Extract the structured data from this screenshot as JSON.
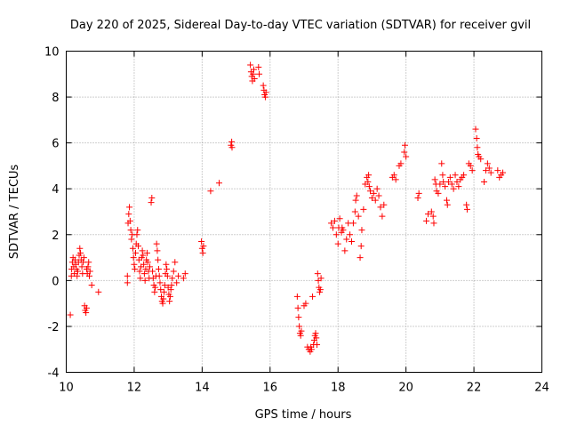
{
  "chart_data": {
    "type": "scatter",
    "title": "Day 220 of 2025, Sidereal Day-to-day VTEC variation (SDTVAR) for receiver gvil",
    "xlabel": "GPS time / hours",
    "ylabel": "SDTVAR / TECUs",
    "xlim": [
      10,
      24
    ],
    "ylim": [
      -4,
      10
    ],
    "xticks": [
      10,
      12,
      14,
      16,
      18,
      20,
      22,
      24
    ],
    "yticks": [
      -4,
      -2,
      0,
      2,
      4,
      6,
      8,
      10
    ],
    "xtick_labels": [
      "10",
      "12",
      "14",
      "16",
      "18",
      "20",
      "22",
      "24"
    ],
    "ytick_labels": [
      "-4",
      "-2",
      "0",
      "2",
      "4",
      "6",
      "8",
      "10"
    ],
    "grid": true,
    "marker": "+",
    "color": "#ff0000",
    "series": [
      {
        "name": "SDTVAR",
        "points": [
          [
            10.12,
            -1.5
          ],
          [
            10.15,
            0.2
          ],
          [
            10.16,
            0.5
          ],
          [
            10.18,
            0.8
          ],
          [
            10.2,
            1.0
          ],
          [
            10.22,
            0.6
          ],
          [
            10.24,
            0.3
          ],
          [
            10.26,
            0.9
          ],
          [
            10.28,
            0.7
          ],
          [
            10.3,
            0.5
          ],
          [
            10.32,
            0.2
          ],
          [
            10.34,
            0.4
          ],
          [
            10.36,
            0.8
          ],
          [
            10.38,
            1.1
          ],
          [
            10.4,
            1.4
          ],
          [
            10.42,
            1.2
          ],
          [
            10.44,
            0.9
          ],
          [
            10.46,
            0.6
          ],
          [
            10.48,
            0.3
          ],
          [
            10.5,
            0.8
          ],
          [
            10.52,
            1.0
          ],
          [
            10.54,
            -1.1
          ],
          [
            10.56,
            -1.3
          ],
          [
            10.58,
            -1.4
          ],
          [
            10.6,
            -1.2
          ],
          [
            10.6,
            0.5
          ],
          [
            10.62,
            0.3
          ],
          [
            10.64,
            0.6
          ],
          [
            10.66,
            0.8
          ],
          [
            10.68,
            0.2
          ],
          [
            10.7,
            0.4
          ],
          [
            10.75,
            -0.2
          ],
          [
            10.95,
            -0.5
          ],
          [
            11.8,
            -0.1
          ],
          [
            11.8,
            0.2
          ],
          [
            11.82,
            2.5
          ],
          [
            11.84,
            2.9
          ],
          [
            11.86,
            3.2
          ],
          [
            11.88,
            2.6
          ],
          [
            11.9,
            2.2
          ],
          [
            11.92,
            1.8
          ],
          [
            11.94,
            2.0
          ],
          [
            11.96,
            1.4
          ],
          [
            11.98,
            1.0
          ],
          [
            12.0,
            0.7
          ],
          [
            12.02,
            0.5
          ],
          [
            12.04,
            1.2
          ],
          [
            12.06,
            1.6
          ],
          [
            12.08,
            2.0
          ],
          [
            12.1,
            2.2
          ],
          [
            12.12,
            1.5
          ],
          [
            12.14,
            0.9
          ],
          [
            12.16,
            0.4
          ],
          [
            12.18,
            0.1
          ],
          [
            12.2,
            0.6
          ],
          [
            12.22,
            1.0
          ],
          [
            12.24,
            1.3
          ],
          [
            12.26,
            1.1
          ],
          [
            12.28,
            0.7
          ],
          [
            12.3,
            0.3
          ],
          [
            12.32,
            0.0
          ],
          [
            12.34,
            0.5
          ],
          [
            12.36,
            0.9
          ],
          [
            12.38,
            1.2
          ],
          [
            12.4,
            0.8
          ],
          [
            12.42,
            0.4
          ],
          [
            12.44,
            0.1
          ],
          [
            12.46,
            0.6
          ],
          [
            12.5,
            3.4
          ],
          [
            12.52,
            3.6
          ],
          [
            12.54,
            0.4
          ],
          [
            12.56,
            0.1
          ],
          [
            12.58,
            -0.2
          ],
          [
            12.6,
            -0.5
          ],
          [
            12.62,
            -0.3
          ],
          [
            12.64,
            0.2
          ],
          [
            12.66,
            1.6
          ],
          [
            12.68,
            1.3
          ],
          [
            12.7,
            0.9
          ],
          [
            12.72,
            0.5
          ],
          [
            12.74,
            0.2
          ],
          [
            12.76,
            -0.1
          ],
          [
            12.78,
            -0.4
          ],
          [
            12.8,
            -0.7
          ],
          [
            12.82,
            -0.9
          ],
          [
            12.84,
            -1.0
          ],
          [
            12.86,
            -0.8
          ],
          [
            12.88,
            -0.5
          ],
          [
            12.9,
            -0.2
          ],
          [
            12.92,
            0.3
          ],
          [
            12.94,
            0.7
          ],
          [
            12.96,
            0.5
          ],
          [
            12.98,
            0.2
          ],
          [
            13.0,
            -0.3
          ],
          [
            13.02,
            -0.6
          ],
          [
            13.04,
            -0.9
          ],
          [
            13.06,
            -0.7
          ],
          [
            13.08,
            -0.4
          ],
          [
            13.1,
            -0.2
          ],
          [
            13.12,
            0.1
          ],
          [
            13.16,
            0.4
          ],
          [
            13.2,
            0.8
          ],
          [
            13.25,
            -0.1
          ],
          [
            13.3,
            0.2
          ],
          [
            13.45,
            0.1
          ],
          [
            13.5,
            0.3
          ],
          [
            13.98,
            1.7
          ],
          [
            14.0,
            1.4
          ],
          [
            14.02,
            1.2
          ],
          [
            14.04,
            1.5
          ],
          [
            14.25,
            3.9
          ],
          [
            14.5,
            4.25
          ],
          [
            14.85,
            5.9
          ],
          [
            14.87,
            6.05
          ],
          [
            14.88,
            5.8
          ],
          [
            15.42,
            9.4
          ],
          [
            15.44,
            9.1
          ],
          [
            15.46,
            8.9
          ],
          [
            15.48,
            8.7
          ],
          [
            15.5,
            9.0
          ],
          [
            15.52,
            9.2
          ],
          [
            15.54,
            8.8
          ],
          [
            15.66,
            9.3
          ],
          [
            15.68,
            9.0
          ],
          [
            15.8,
            8.5
          ],
          [
            15.82,
            8.3
          ],
          [
            15.84,
            8.1
          ],
          [
            15.86,
            8.0
          ],
          [
            15.88,
            8.2
          ],
          [
            16.8,
            -0.7
          ],
          [
            16.82,
            -1.2
          ],
          [
            16.84,
            -1.6
          ],
          [
            16.86,
            -2.0
          ],
          [
            16.88,
            -2.3
          ],
          [
            16.9,
            -2.4
          ],
          [
            16.92,
            -2.2
          ],
          [
            17.0,
            -1.1
          ],
          [
            17.05,
            -1.0
          ],
          [
            17.1,
            -2.9
          ],
          [
            17.14,
            -3.0
          ],
          [
            17.18,
            -3.1
          ],
          [
            17.2,
            -2.9
          ],
          [
            17.22,
            -3.0
          ],
          [
            17.25,
            -0.7
          ],
          [
            17.28,
            -2.8
          ],
          [
            17.3,
            -2.6
          ],
          [
            17.32,
            -2.4
          ],
          [
            17.34,
            -2.3
          ],
          [
            17.36,
            -2.5
          ],
          [
            17.38,
            -2.8
          ],
          [
            17.4,
            0.3
          ],
          [
            17.42,
            0.0
          ],
          [
            17.44,
            -0.3
          ],
          [
            17.46,
            -0.5
          ],
          [
            17.48,
            -0.4
          ],
          [
            17.5,
            0.1
          ],
          [
            17.8,
            2.5
          ],
          [
            17.85,
            2.3
          ],
          [
            17.9,
            2.6
          ],
          [
            17.95,
            2.0
          ],
          [
            18.0,
            1.6
          ],
          [
            18.02,
            2.3
          ],
          [
            18.05,
            2.7
          ],
          [
            18.1,
            2.1
          ],
          [
            18.12,
            2.3
          ],
          [
            18.15,
            2.2
          ],
          [
            18.2,
            1.3
          ],
          [
            18.25,
            1.8
          ],
          [
            18.3,
            2.5
          ],
          [
            18.35,
            2.0
          ],
          [
            18.4,
            1.7
          ],
          [
            18.45,
            2.5
          ],
          [
            18.5,
            3.0
          ],
          [
            18.52,
            3.5
          ],
          [
            18.55,
            3.7
          ],
          [
            18.6,
            2.8
          ],
          [
            18.65,
            1.0
          ],
          [
            18.68,
            1.5
          ],
          [
            18.7,
            2.2
          ],
          [
            18.75,
            3.1
          ],
          [
            18.8,
            4.2
          ],
          [
            18.85,
            4.5
          ],
          [
            18.88,
            4.3
          ],
          [
            18.9,
            4.6
          ],
          [
            18.92,
            4.1
          ],
          [
            18.95,
            3.9
          ],
          [
            19.0,
            3.6
          ],
          [
            19.05,
            3.8
          ],
          [
            19.1,
            3.5
          ],
          [
            19.15,
            4.0
          ],
          [
            19.2,
            3.7
          ],
          [
            19.25,
            3.2
          ],
          [
            19.3,
            2.8
          ],
          [
            19.35,
            3.3
          ],
          [
            19.6,
            4.5
          ],
          [
            19.65,
            4.6
          ],
          [
            19.7,
            4.4
          ],
          [
            19.8,
            5.0
          ],
          [
            19.85,
            5.1
          ],
          [
            19.95,
            5.6
          ],
          [
            19.97,
            5.9
          ],
          [
            20.0,
            5.4
          ],
          [
            20.35,
            3.6
          ],
          [
            20.38,
            3.8
          ],
          [
            20.6,
            2.6
          ],
          [
            20.65,
            2.9
          ],
          [
            20.75,
            3.0
          ],
          [
            20.8,
            2.8
          ],
          [
            20.82,
            2.5
          ],
          [
            20.85,
            4.4
          ],
          [
            20.88,
            4.2
          ],
          [
            20.9,
            3.9
          ],
          [
            20.95,
            3.8
          ],
          [
            21.0,
            4.2
          ],
          [
            21.05,
            5.1
          ],
          [
            21.08,
            4.6
          ],
          [
            21.1,
            4.3
          ],
          [
            21.15,
            4.1
          ],
          [
            21.2,
            3.5
          ],
          [
            21.22,
            3.3
          ],
          [
            21.25,
            4.3
          ],
          [
            21.3,
            4.5
          ],
          [
            21.35,
            4.2
          ],
          [
            21.4,
            4.0
          ],
          [
            21.45,
            4.6
          ],
          [
            21.5,
            4.3
          ],
          [
            21.55,
            4.1
          ],
          [
            21.6,
            4.4
          ],
          [
            21.65,
            4.5
          ],
          [
            21.7,
            4.6
          ],
          [
            21.78,
            3.3
          ],
          [
            21.8,
            3.1
          ],
          [
            21.85,
            5.1
          ],
          [
            21.9,
            5.0
          ],
          [
            21.95,
            4.8
          ],
          [
            22.05,
            6.6
          ],
          [
            22.08,
            6.2
          ],
          [
            22.1,
            5.8
          ],
          [
            22.12,
            5.5
          ],
          [
            22.15,
            5.4
          ],
          [
            22.2,
            5.3
          ],
          [
            22.3,
            4.3
          ],
          [
            22.35,
            4.8
          ],
          [
            22.4,
            5.1
          ],
          [
            22.45,
            4.9
          ],
          [
            22.5,
            4.7
          ],
          [
            22.7,
            4.8
          ],
          [
            22.75,
            4.5
          ],
          [
            22.8,
            4.6
          ],
          [
            22.85,
            4.7
          ]
        ]
      }
    ]
  }
}
